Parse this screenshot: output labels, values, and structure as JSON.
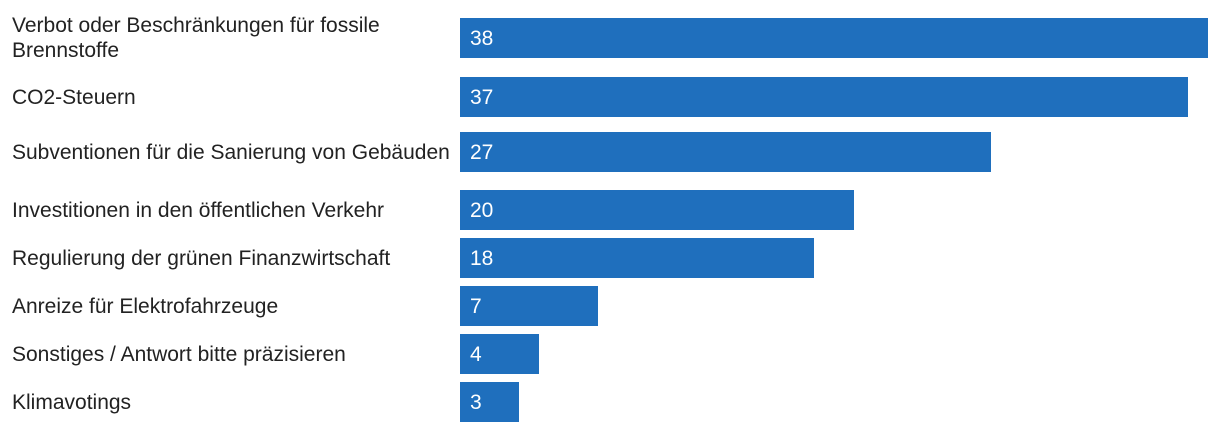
{
  "chart_data": {
    "type": "bar",
    "orientation": "horizontal",
    "categories": [
      "Verbot oder Beschränkungen für fossile Brennstoffe",
      "CO2-Steuern",
      "Subventionen für die Sanierung von Gebäuden",
      "Investitionen in den öffentlichen Verkehr",
      "Regulierung der grünen Finanzwirtschaft",
      "Anreize für Elektrofahrzeuge",
      "Sonstiges / Antwort bitte präzisieren",
      "Klimavotings"
    ],
    "values": [
      38,
      37,
      27,
      20,
      18,
      7,
      4,
      3
    ],
    "value_labels": [
      "38",
      "37",
      "27",
      "20",
      "18",
      "7",
      "4",
      "3"
    ],
    "title": "",
    "xlabel": "",
    "ylabel": "",
    "xlim": [
      0,
      38
    ],
    "grid": false,
    "legend": "none",
    "bar_color": "#1f6fbd",
    "label_color": "#222222",
    "value_label_color": "#ffffff"
  }
}
